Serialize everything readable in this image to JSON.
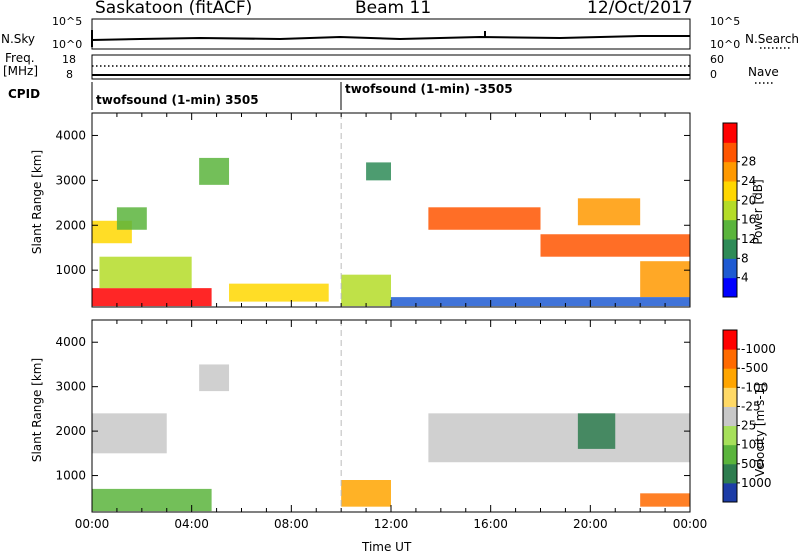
{
  "header": {
    "station": "Saskatoon (fitACF)",
    "beam": "Beam 11",
    "date": "12/Oct/2017"
  },
  "panels": {
    "nsky": {
      "label": "N.Sky",
      "ticks": [
        "10^5",
        "10^0"
      ],
      "right_label": "N.Search",
      "right_ticks": [
        "10^5",
        "10^0"
      ]
    },
    "freq": {
      "label": "Freq.",
      "unit": "[MHz]",
      "ticks": [
        "18",
        "8"
      ],
      "right_label": "Nave",
      "right_ticks": [
        "60",
        "0"
      ]
    },
    "cpid": {
      "label": "CPID",
      "segments": [
        "twofsound (1-min) 3505",
        "twofsound (1-min) -3505"
      ]
    }
  },
  "xaxis": {
    "label": "Time UT",
    "ticks": [
      "00:00",
      "04:00",
      "08:00",
      "12:00",
      "16:00",
      "20:00",
      "00:00"
    ]
  },
  "chart_data": [
    {
      "type": "heatmap",
      "name": "power",
      "ylabel": "Slant Range [km]",
      "yticks": [
        1000,
        2000,
        3000,
        4000
      ],
      "ylim": [
        180,
        4500
      ],
      "xlim_hours": [
        0,
        24
      ],
      "colorbar": {
        "label": "Power [dB]",
        "ticks": [
          "4",
          "8",
          "12",
          "16",
          "20",
          "24",
          "28"
        ],
        "colors": [
          "#0000ff",
          "#1e5ad2",
          "#2e8b57",
          "#5ab43c",
          "#b4dc28",
          "#ffd700",
          "#ff9900",
          "#ff5500",
          "#ff0000"
        ]
      },
      "regions": [
        {
          "t": [
            0.0,
            1.6
          ],
          "r": [
            1600,
            2100
          ],
          "level": 5
        },
        {
          "t": [
            0.0,
            4.8
          ],
          "r": [
            200,
            600
          ],
          "level": 8
        },
        {
          "t": [
            0.3,
            4.0
          ],
          "r": [
            600,
            1300
          ],
          "level": 4
        },
        {
          "t": [
            1.0,
            2.2
          ],
          "r": [
            1900,
            2400
          ],
          "level": 3
        },
        {
          "t": [
            4.3,
            5.5
          ],
          "r": [
            2900,
            3500
          ],
          "level": 3
        },
        {
          "t": [
            5.5,
            9.5
          ],
          "r": [
            300,
            700
          ],
          "level": 5
        },
        {
          "t": [
            10.0,
            12.0
          ],
          "r": [
            200,
            900
          ],
          "level": 4
        },
        {
          "t": [
            11.0,
            12.0
          ],
          "r": [
            3000,
            3400
          ],
          "level": 2
        },
        {
          "t": [
            13.5,
            18.0
          ],
          "r": [
            1900,
            2400
          ],
          "level": 7
        },
        {
          "t": [
            18.0,
            24.0
          ],
          "r": [
            1300,
            1800
          ],
          "level": 7
        },
        {
          "t": [
            19.5,
            22.0
          ],
          "r": [
            2000,
            2600
          ],
          "level": 6
        },
        {
          "t": [
            22.0,
            24.0
          ],
          "r": [
            400,
            1200
          ],
          "level": 6
        },
        {
          "t": [
            12.0,
            24.0
          ],
          "r": [
            200,
            400
          ],
          "level": 1
        }
      ]
    },
    {
      "type": "heatmap",
      "name": "velocity",
      "ylabel": "Slant Range [km]",
      "yticks": [
        1000,
        2000,
        3000,
        4000
      ],
      "ylim": [
        180,
        4500
      ],
      "xlim_hours": [
        0,
        24
      ],
      "colorbar": {
        "label": "Velocity [m s-1]",
        "ticks": [
          "1000",
          "500",
          "100",
          "25",
          "-25",
          "-100",
          "-500",
          "-1000"
        ],
        "colors": [
          "#1c3ca6",
          "#2e7d4f",
          "#5ab43c",
          "#a6e05a",
          "#c8c8c8",
          "#ffd966",
          "#ffa500",
          "#ff6a00",
          "#ff0000"
        ]
      },
      "regions": [
        {
          "t": [
            0.0,
            3.0
          ],
          "r": [
            1500,
            2400
          ],
          "level": 4
        },
        {
          "t": [
            0.0,
            4.8
          ],
          "r": [
            200,
            700
          ],
          "level": 2
        },
        {
          "t": [
            4.3,
            5.5
          ],
          "r": [
            2900,
            3500
          ],
          "level": 4
        },
        {
          "t": [
            10.0,
            12.0
          ],
          "r": [
            300,
            900
          ],
          "level": 6
        },
        {
          "t": [
            13.5,
            24.0
          ],
          "r": [
            1300,
            2400
          ],
          "level": 4
        },
        {
          "t": [
            19.5,
            21.0
          ],
          "r": [
            1600,
            2400
          ],
          "level": 1
        },
        {
          "t": [
            22.0,
            24.0
          ],
          "r": [
            300,
            600
          ],
          "level": 7
        }
      ]
    }
  ]
}
